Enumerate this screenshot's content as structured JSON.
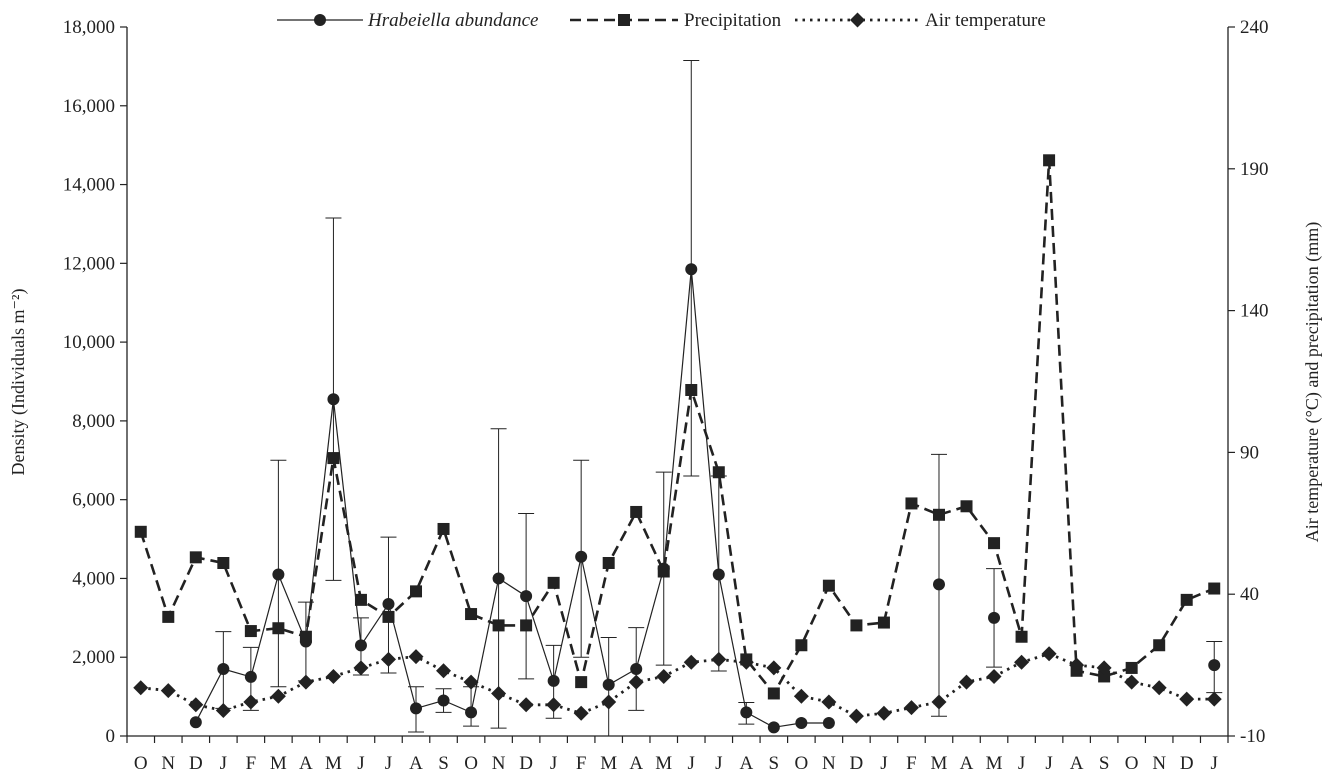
{
  "chart_data": {
    "type": "line",
    "title": "",
    "ylabel_left": "Density (Individuals m⁻²)",
    "ylabel_right": "Air temperature (°C) and precipitation (mm)",
    "ylim_left": [
      0,
      18000
    ],
    "ylim_right": [
      -10,
      240
    ],
    "yticks_left": [
      "0",
      "2,000",
      "4,000",
      "6,000",
      "8,000",
      "10,000",
      "12,000",
      "14,000",
      "16,000",
      "18,000"
    ],
    "yticks_right": [
      "-10",
      "40",
      "90",
      "140",
      "190",
      "240"
    ],
    "x": [
      "O",
      "N",
      "D",
      "J",
      "F",
      "M",
      "A",
      "M",
      "J",
      "J",
      "A",
      "S",
      "O",
      "N",
      "D",
      "J",
      "F",
      "M",
      "A",
      "M",
      "J",
      "J",
      "A",
      "S",
      "O",
      "N",
      "D",
      "J",
      "F",
      "M",
      "A",
      "M",
      "J",
      "J",
      "A",
      "S",
      "O",
      "N",
      "D",
      "J"
    ],
    "legend_position": "top-center",
    "grid": false,
    "series": [
      {
        "name": "Hrabeiella abundance",
        "axis": "left",
        "marker": "circle",
        "line_style": "solid",
        "values": [
          null,
          null,
          350,
          1700,
          1500,
          4100,
          2400,
          8550,
          2300,
          3350,
          700,
          900,
          600,
          4000,
          3550,
          1400,
          4550,
          1300,
          1700,
          4250,
          11850,
          4100,
          600,
          220,
          330,
          330,
          null,
          null,
          null,
          3850,
          null,
          3000,
          null,
          null,
          null,
          null,
          null,
          null,
          null,
          1800
        ],
        "error_upper": [
          null,
          null,
          null,
          2650,
          2250,
          7000,
          3400,
          13150,
          3000,
          5050,
          1250,
          1200,
          1250,
          7800,
          5650,
          2300,
          7000,
          2500,
          2750,
          6700,
          17150,
          6600,
          850,
          null,
          null,
          null,
          null,
          null,
          null,
          7150,
          null,
          4250,
          null,
          null,
          null,
          null,
          null,
          null,
          null,
          2400
        ],
        "error_lower": [
          null,
          null,
          null,
          700,
          650,
          1250,
          1400,
          3950,
          1550,
          1600,
          100,
          600,
          250,
          200,
          1450,
          450,
          2000,
          0,
          650,
          1800,
          6600,
          1650,
          300,
          null,
          null,
          null,
          null,
          null,
          null,
          500,
          null,
          1750,
          null,
          null,
          null,
          null,
          null,
          null,
          null,
          1100
        ]
      },
      {
        "name": "Precipitation",
        "axis": "right",
        "marker": "square",
        "line_style": "dashed",
        "values": [
          62,
          32,
          53,
          51,
          27,
          28,
          25,
          88,
          38,
          32,
          41,
          63,
          33,
          29,
          29,
          44,
          9,
          51,
          69,
          48,
          112,
          83,
          17,
          5,
          22,
          43,
          29,
          30,
          72,
          68,
          71,
          58,
          25,
          193,
          13,
          11,
          14,
          22,
          38,
          42
        ]
      },
      {
        "name": "Air temperature",
        "axis": "right",
        "marker": "diamond",
        "line_style": "dotted",
        "values": [
          7,
          6,
          1,
          -1,
          2,
          4,
          9,
          11,
          14,
          17,
          18,
          13,
          9,
          5,
          1,
          1,
          -2,
          2,
          9,
          11,
          16,
          17,
          16,
          14,
          4,
          2,
          -3,
          -2,
          0,
          2,
          9,
          11,
          16,
          19,
          15,
          14,
          9,
          7,
          3,
          3
        ]
      }
    ]
  }
}
